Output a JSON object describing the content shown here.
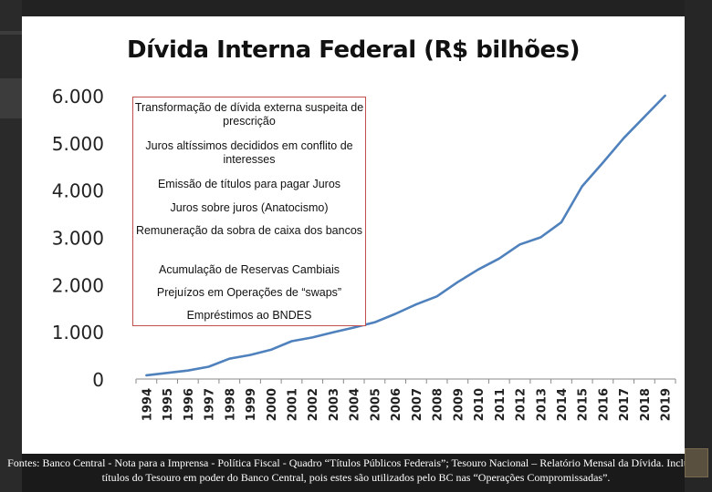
{
  "chart_data": {
    "type": "line",
    "title": "Dívida Interna Federal (R$ bilhões)",
    "xlabel": "",
    "ylabel": "",
    "ylim": [
      0,
      6000
    ],
    "yticks": [
      0,
      1000,
      2000,
      3000,
      4000,
      5000,
      6000
    ],
    "ytick_labels": [
      "0",
      "1.000",
      "2.000",
      "3.000",
      "4.000",
      "5.000",
      "6.000"
    ],
    "x": [
      "1994",
      "1995",
      "1996",
      "1997",
      "1998",
      "1999",
      "2000",
      "2001",
      "2002",
      "2003",
      "2004",
      "2005",
      "2006",
      "2007",
      "2008",
      "2009",
      "2010",
      "2011",
      "2012",
      "2013",
      "2014",
      "2015",
      "2016",
      "2017",
      "2018",
      "2019"
    ],
    "series": [
      {
        "name": "",
        "color": "#4f81bd",
        "values": [
          80,
          130,
          180,
          260,
          430,
          510,
          620,
          800,
          880,
          990,
          1090,
          1200,
          1380,
          1580,
          1750,
          2050,
          2320,
          2550,
          2850,
          3000,
          3320,
          4080,
          4580,
          5100,
          5550,
          6000
        ]
      }
    ],
    "grid": false,
    "legend": "none",
    "annotations": [
      "Transformação de dívida externa suspeita de prescrição",
      "Juros altíssimos decididos em conflito de interesses",
      "Emissão de títulos para pagar Juros",
      "Juros sobre juros (Anatocismo)",
      "Remuneração da sobra de caixa dos bancos",
      "Acumulação de Reservas Cambiais",
      "Prejuízos em Operações de “swaps”",
      "Empréstimos ao BNDES"
    ]
  },
  "source_note": "Fontes: Banco Central - Nota para a Imprensa - Política Fiscal - Quadro “Títulos Públicos Federais”; Tesouro Nacional – Relatório Mensal da Dívida. Inclui os títulos do Tesouro em poder do Banco Central, pois estes são utilizados pelo BC nas “Operações Compromissadas”."
}
